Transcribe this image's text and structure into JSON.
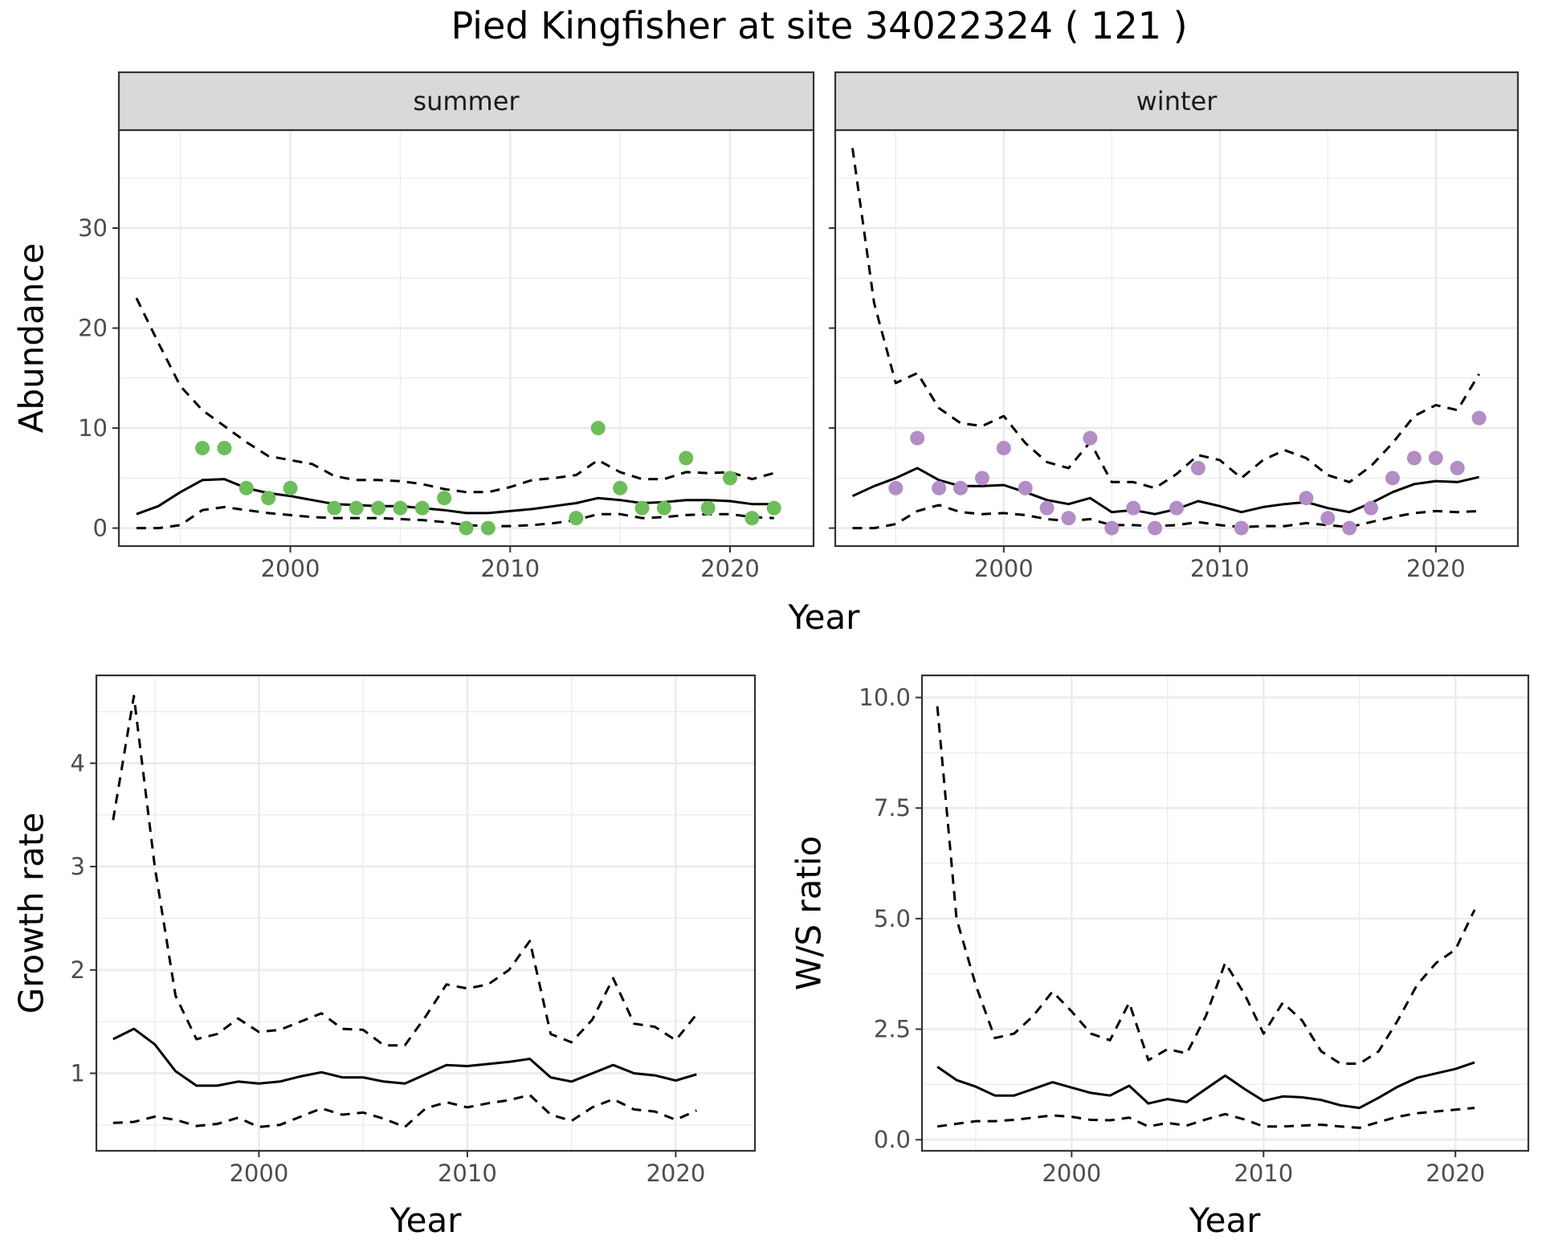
{
  "title": "Pied Kingfisher at site 34022324 ( 121 )",
  "colors": {
    "summer_points": "#6dbd5b",
    "winter_points": "#b28dc6",
    "line": "#000000",
    "strip_fill": "#d9d9d9",
    "grid": "#ebebeb"
  },
  "chart_data": [
    {
      "type": "line",
      "panel": "summer",
      "strip_label": "summer",
      "xlabel": "Year",
      "ylabel": "Abundance",
      "xlim": [
        1992.2,
        2023.8
      ],
      "ylim": [
        -1.8,
        39.8
      ],
      "x_ticks": [
        2000,
        2010,
        2020
      ],
      "y_ticks": [
        0,
        10,
        20,
        30
      ],
      "grid": true,
      "series": [
        {
          "role": "fit",
          "style": "solid",
          "x": [
            1993,
            1994,
            1995,
            1996,
            1997,
            1998,
            1999,
            2000,
            2001,
            2002,
            2003,
            2004,
            2005,
            2006,
            2007,
            2008,
            2009,
            2010,
            2011,
            2012,
            2013,
            2014,
            2015,
            2016,
            2017,
            2018,
            2019,
            2020,
            2021,
            2022
          ],
          "y": [
            1.4,
            2.2,
            3.6,
            4.8,
            4.9,
            4.0,
            3.5,
            3.2,
            2.8,
            2.4,
            2.3,
            2.2,
            2.2,
            2.0,
            1.8,
            1.5,
            1.5,
            1.7,
            1.9,
            2.2,
            2.5,
            3.0,
            2.8,
            2.5,
            2.6,
            2.8,
            2.8,
            2.7,
            2.4,
            2.4
          ]
        },
        {
          "role": "upper",
          "style": "dashed",
          "x": [
            1993,
            1994,
            1995,
            1996,
            1997,
            1998,
            1999,
            2000,
            2001,
            2002,
            2003,
            2004,
            2005,
            2006,
            2007,
            2008,
            2009,
            2010,
            2011,
            2012,
            2013,
            2014,
            2015,
            2016,
            2017,
            2018,
            2019,
            2020,
            2021,
            2022
          ],
          "y": [
            23,
            18.5,
            14.2,
            11.8,
            10.2,
            8.6,
            7.2,
            6.8,
            6.4,
            5.2,
            4.8,
            4.8,
            4.7,
            4.4,
            3.9,
            3.6,
            3.6,
            4.1,
            4.8,
            5.0,
            5.3,
            6.8,
            5.6,
            4.9,
            4.9,
            5.6,
            5.5,
            5.6,
            4.9,
            5.5
          ]
        },
        {
          "role": "lower",
          "style": "dashed",
          "x": [
            1993,
            1994,
            1995,
            1996,
            1997,
            1998,
            1999,
            2000,
            2001,
            2002,
            2003,
            2004,
            2005,
            2006,
            2007,
            2008,
            2009,
            2010,
            2011,
            2012,
            2013,
            2014,
            2015,
            2016,
            2017,
            2018,
            2019,
            2020,
            2021,
            2022
          ],
          "y": [
            0,
            0,
            0.3,
            1.8,
            2.1,
            1.8,
            1.5,
            1.3,
            1.1,
            1.0,
            1.0,
            1.0,
            0.9,
            0.8,
            0.6,
            0.3,
            0.2,
            0.2,
            0.3,
            0.5,
            0.8,
            1.4,
            1.4,
            1.0,
            1.1,
            1.3,
            1.4,
            1.4,
            1.1,
            1.0
          ]
        },
        {
          "role": "observed",
          "style": "points",
          "x": [
            1996,
            1997,
            1998,
            1999,
            2000,
            2002,
            2003,
            2004,
            2005,
            2006,
            2007,
            2008,
            2009,
            2013,
            2014,
            2015,
            2016,
            2017,
            2018,
            2019,
            2020,
            2021,
            2022
          ],
          "y": [
            8,
            8,
            4,
            3,
            4,
            2,
            2,
            2,
            2,
            2,
            3,
            0,
            0,
            1,
            10,
            4,
            2,
            2,
            7,
            2,
            5,
            1,
            2
          ]
        }
      ]
    },
    {
      "type": "line",
      "panel": "winter",
      "strip_label": "winter",
      "xlabel": "Year",
      "ylabel": "Abundance",
      "xlim": [
        1992.2,
        2023.8
      ],
      "ylim": [
        -1.8,
        39.8
      ],
      "x_ticks": [
        2000,
        2010,
        2020
      ],
      "y_ticks": [],
      "grid": true,
      "series": [
        {
          "role": "fit",
          "style": "solid",
          "x": [
            1993,
            1994,
            1995,
            1996,
            1997,
            1998,
            1999,
            2000,
            2001,
            2002,
            2003,
            2004,
            2005,
            2006,
            2007,
            2008,
            2009,
            2010,
            2011,
            2012,
            2013,
            2014,
            2015,
            2016,
            2017,
            2018,
            2019,
            2020,
            2021,
            2022
          ],
          "y": [
            3.2,
            4.2,
            5.0,
            6.0,
            4.8,
            4.2,
            4.2,
            4.3,
            3.6,
            2.8,
            2.4,
            3.0,
            1.6,
            1.8,
            1.4,
            1.9,
            2.7,
            2.2,
            1.6,
            2.1,
            2.4,
            2.6,
            2.0,
            1.6,
            2.5,
            3.6,
            4.4,
            4.7,
            4.6,
            5.1
          ]
        },
        {
          "role": "upper",
          "style": "dashed",
          "x": [
            1993,
            1994,
            1995,
            1996,
            1997,
            1998,
            1999,
            2000,
            2001,
            2002,
            2003,
            2004,
            2005,
            2006,
            2007,
            2008,
            2009,
            2010,
            2011,
            2012,
            2013,
            2014,
            2015,
            2016,
            2017,
            2018,
            2019,
            2020,
            2021,
            2022
          ],
          "y": [
            38,
            22.5,
            14.5,
            15.5,
            12.0,
            10.5,
            10.2,
            11.2,
            8.5,
            6.6,
            6.0,
            8.6,
            4.6,
            4.6,
            4.0,
            5.4,
            7.3,
            6.8,
            5.0,
            6.8,
            7.8,
            7.0,
            5.3,
            4.6,
            6.2,
            8.5,
            11.2,
            12.3,
            11.8,
            15.4
          ]
        },
        {
          "role": "lower",
          "style": "dashed",
          "x": [
            1993,
            1994,
            1995,
            1996,
            1997,
            1998,
            1999,
            2000,
            2001,
            2002,
            2003,
            2004,
            2005,
            2006,
            2007,
            2008,
            2009,
            2010,
            2011,
            2012,
            2013,
            2014,
            2015,
            2016,
            2017,
            2018,
            2019,
            2020,
            2021,
            2022
          ],
          "y": [
            0,
            0,
            0.4,
            1.7,
            2.3,
            1.6,
            1.4,
            1.5,
            1.3,
            0.9,
            0.7,
            0.9,
            0.3,
            0.3,
            0.2,
            0.3,
            0.6,
            0.3,
            0.1,
            0.2,
            0.2,
            0.5,
            0.3,
            0.1,
            0.6,
            1.1,
            1.5,
            1.7,
            1.6,
            1.7
          ]
        },
        {
          "role": "observed",
          "style": "points",
          "x": [
            1995,
            1996,
            1997,
            1998,
            1999,
            2000,
            2001,
            2002,
            2003,
            2004,
            2005,
            2006,
            2007,
            2008,
            2009,
            2011,
            2014,
            2015,
            2016,
            2017,
            2018,
            2019,
            2020,
            2021,
            2022
          ],
          "y": [
            4,
            9,
            4,
            4,
            5,
            8,
            4,
            2,
            1,
            9,
            0,
            2,
            0,
            2,
            6,
            0,
            3,
            1,
            0,
            2,
            5,
            7,
            7,
            6,
            11
          ]
        }
      ]
    },
    {
      "type": "line",
      "panel": "growth",
      "xlabel": "Year",
      "ylabel": "Growth rate",
      "xlim": [
        1992.2,
        2023.8
      ],
      "ylim": [
        0.25,
        4.85
      ],
      "x_ticks": [
        2000,
        2010,
        2020
      ],
      "y_ticks": [
        1,
        2,
        3,
        4
      ],
      "grid": true,
      "series": [
        {
          "role": "fit",
          "style": "solid",
          "x": [
            1993,
            1994,
            1995,
            1996,
            1997,
            1998,
            1999,
            2000,
            2001,
            2002,
            2003,
            2004,
            2005,
            2006,
            2007,
            2008,
            2009,
            2010,
            2011,
            2012,
            2013,
            2014,
            2015,
            2016,
            2017,
            2018,
            2019,
            2020,
            2021
          ],
          "y": [
            1.33,
            1.43,
            1.28,
            1.02,
            0.88,
            0.88,
            0.92,
            0.9,
            0.92,
            0.97,
            1.01,
            0.96,
            0.96,
            0.92,
            0.9,
            0.99,
            1.08,
            1.07,
            1.09,
            1.11,
            1.14,
            0.96,
            0.92,
            1.0,
            1.08,
            1.0,
            0.98,
            0.93,
            0.99
          ]
        },
        {
          "role": "upper",
          "style": "dashed",
          "x": [
            1993,
            1994,
            1995,
            1996,
            1997,
            1998,
            1999,
            2000,
            2001,
            2002,
            2003,
            2004,
            2005,
            2006,
            2007,
            2008,
            2009,
            2010,
            2011,
            2012,
            2013,
            2014,
            2015,
            2016,
            2017,
            2018,
            2019,
            2020,
            2021
          ],
          "y": [
            3.45,
            4.65,
            3.0,
            1.75,
            1.33,
            1.38,
            1.53,
            1.4,
            1.42,
            1.5,
            1.58,
            1.43,
            1.42,
            1.27,
            1.27,
            1.55,
            1.86,
            1.82,
            1.86,
            2.0,
            2.28,
            1.38,
            1.3,
            1.52,
            1.92,
            1.48,
            1.45,
            1.32,
            1.57
          ]
        },
        {
          "role": "lower",
          "style": "dashed",
          "x": [
            1993,
            1994,
            1995,
            1996,
            1997,
            1998,
            1999,
            2000,
            2001,
            2002,
            2003,
            2004,
            2005,
            2006,
            2007,
            2008,
            2009,
            2010,
            2011,
            2012,
            2013,
            2014,
            2015,
            2016,
            2017,
            2018,
            2019,
            2020,
            2021
          ],
          "y": [
            0.52,
            0.53,
            0.58,
            0.55,
            0.49,
            0.51,
            0.57,
            0.48,
            0.5,
            0.58,
            0.66,
            0.6,
            0.62,
            0.56,
            0.48,
            0.66,
            0.72,
            0.67,
            0.71,
            0.74,
            0.79,
            0.6,
            0.54,
            0.67,
            0.75,
            0.65,
            0.63,
            0.55,
            0.64
          ]
        }
      ]
    },
    {
      "type": "line",
      "panel": "ws_ratio",
      "xlabel": "Year",
      "ylabel": "W/S ratio",
      "xlim": [
        1992.2,
        2023.8
      ],
      "ylim": [
        -0.25,
        10.5
      ],
      "x_ticks": [
        2000,
        2010,
        2020
      ],
      "y_ticks": [
        "0.0",
        "2.5",
        "5.0",
        "7.5",
        "10.0"
      ],
      "grid": true,
      "series": [
        {
          "role": "fit",
          "style": "solid",
          "x": [
            1993,
            1994,
            1995,
            1996,
            1997,
            1998,
            1999,
            2000,
            2001,
            2002,
            2003,
            2004,
            2005,
            2006,
            2007,
            2008,
            2009,
            2010,
            2011,
            2012,
            2013,
            2014,
            2015,
            2016,
            2017,
            2018,
            2019,
            2020,
            2021
          ],
          "y": [
            1.65,
            1.35,
            1.2,
            1.0,
            1.0,
            1.15,
            1.3,
            1.18,
            1.06,
            1.0,
            1.22,
            0.82,
            0.92,
            0.85,
            1.15,
            1.45,
            1.15,
            0.88,
            0.98,
            0.96,
            0.9,
            0.78,
            0.72,
            0.95,
            1.2,
            1.4,
            1.5,
            1.6,
            1.75
          ]
        },
        {
          "role": "upper",
          "style": "dashed",
          "x": [
            1993,
            1994,
            1995,
            1996,
            1997,
            1998,
            1999,
            2000,
            2001,
            2002,
            2003,
            2004,
            2005,
            2006,
            2007,
            2008,
            2009,
            2010,
            2011,
            2012,
            2013,
            2014,
            2015,
            2016,
            2017,
            2018,
            2019,
            2020,
            2021
          ],
          "y": [
            9.8,
            5.0,
            3.5,
            2.3,
            2.4,
            2.8,
            3.35,
            2.9,
            2.4,
            2.25,
            3.1,
            1.8,
            2.05,
            1.95,
            2.8,
            4.0,
            3.3,
            2.4,
            3.1,
            2.7,
            2.0,
            1.72,
            1.72,
            2.0,
            2.7,
            3.5,
            4.0,
            4.3,
            5.2
          ]
        },
        {
          "role": "lower",
          "style": "dashed",
          "x": [
            1993,
            1994,
            1995,
            1996,
            1997,
            1998,
            1999,
            2000,
            2001,
            2002,
            2003,
            2004,
            2005,
            2006,
            2007,
            2008,
            2009,
            2010,
            2011,
            2012,
            2013,
            2014,
            2015,
            2016,
            2017,
            2018,
            2019,
            2020,
            2021
          ],
          "y": [
            0.3,
            0.36,
            0.42,
            0.42,
            0.45,
            0.5,
            0.55,
            0.52,
            0.45,
            0.44,
            0.5,
            0.3,
            0.38,
            0.32,
            0.46,
            0.58,
            0.46,
            0.3,
            0.3,
            0.32,
            0.34,
            0.3,
            0.27,
            0.4,
            0.52,
            0.6,
            0.64,
            0.68,
            0.72
          ]
        }
      ]
    }
  ]
}
